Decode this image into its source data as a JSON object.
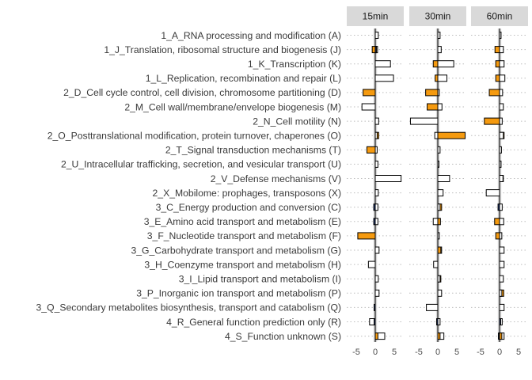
{
  "chart_data": {
    "type": "bar",
    "orientation": "horizontal",
    "facets": [
      "15min",
      "30min",
      "60min"
    ],
    "categories": [
      "1_A_RNA processing and modification (A)",
      "1_J_Translation, ribosomal structure and biogenesis (J)",
      "1_K_Transcription (K)",
      "1_L_Replication, recombination and repair (L)",
      "2_D_Cell cycle control, cell division, chromosome partitioning (D)",
      "2_M_Cell wall/membrane/envelope biogenesis (M)",
      "2_N_Cell motility (N)",
      "2_O_Posttranslational modification, protein turnover, chaperones (O)",
      "2_T_Signal transduction mechanisms (T)",
      "2_U_Intracellular trafficking, secretion, and vesicular transport (U)",
      "2_V_Defense mechanisms (V)",
      "2_X_Mobilome: prophages, transposons (X)",
      "3_C_Energy production and conversion (C)",
      "3_E_Amino acid transport and metabolism (E)",
      "3_F_Nucleotide transport and metabolism (F)",
      "3_G_Carbohydrate transport and metabolism (G)",
      "3_H_Coenzyme transport and metabolism (H)",
      "3_I_Lipid transport and metabolism (I)",
      "3_P_Inorganic ion transport and metabolism (P)",
      "3_Q_Secondary metabolites biosynthesis, transport and catabolism (Q)",
      "4_R_General function prediction only (R)",
      "4_S_Function unknown (S)"
    ],
    "xlim": [
      -7.5,
      7.5
    ],
    "xticks": [
      -5,
      0,
      5
    ],
    "series": [
      {
        "fill": "#ffffff",
        "values": {
          "15min": [
            0.8,
            0.6,
            4.0,
            4.8,
            0,
            -3.5,
            0.9,
            0.5,
            0.5,
            0.7,
            6.8,
            0.8,
            0.7,
            0.7,
            0,
            1.0,
            -1.8,
            0.8,
            1.0,
            0,
            -1.5,
            2.5
          ],
          "30min": [
            0.6,
            0.9,
            4.2,
            2.4,
            0.4,
            1.1,
            -7.2,
            -0.8,
            0.6,
            0.3,
            3.1,
            1.4,
            0.6,
            -1.2,
            0.4,
            1.0,
            -1.1,
            0.6,
            1.0,
            -3.0,
            0.6,
            1.6
          ],
          "60min": [
            0.4,
            1.0,
            1.2,
            1.4,
            0.8,
            1.0,
            0.7,
            1.0,
            0.5,
            0.4,
            0.9,
            -3.5,
            0.7,
            1.1,
            0.6,
            1.2,
            1.2,
            1.0,
            0.6,
            1.2,
            0.7,
            1.2
          ]
        }
      },
      {
        "fill": "#f59a0f",
        "values": {
          "15min": [
            0,
            -0.8,
            0,
            0,
            -3.2,
            0,
            0,
            0.9,
            -2.2,
            0,
            0,
            0,
            0,
            0,
            -4.6,
            0,
            0,
            0,
            0,
            0,
            0,
            0.7
          ],
          "30min": [
            0,
            0,
            -1.2,
            -0.7,
            -3.2,
            -2.8,
            0,
            7.2,
            0,
            0,
            0,
            0,
            1.0,
            0.7,
            0,
            0.8,
            0,
            0.8,
            0,
            0,
            0,
            0.6
          ],
          "60min": [
            0,
            -1.2,
            -1.0,
            -1.0,
            -2.7,
            0,
            -4.0,
            1.2,
            0,
            0,
            1.0,
            0,
            0,
            -1.3,
            -1.0,
            0,
            0,
            0,
            1.1,
            0,
            0,
            0.6
          ]
        }
      },
      {
        "fill": "#1f3a7a",
        "values": {
          "15min": [
            0,
            0.3,
            0,
            0,
            0,
            0,
            0,
            0,
            0,
            0,
            0,
            0,
            -0.4,
            -0.4,
            0,
            0,
            0,
            0,
            0,
            -0.3,
            -0.3,
            0
          ],
          "30min": [
            0,
            0,
            0,
            0,
            0,
            0,
            0,
            0,
            0,
            0,
            0,
            0,
            0,
            0,
            0,
            0,
            0,
            0,
            0,
            0,
            -0.3,
            0
          ],
          "60min": [
            0,
            0,
            0,
            0,
            0,
            0,
            0,
            0,
            0,
            0,
            0,
            0,
            -0.4,
            0,
            0,
            0,
            0,
            0,
            0,
            0,
            0.3,
            -0.3
          ]
        }
      }
    ],
    "grid": true,
    "legend": "none",
    "title": "",
    "xlabel": "",
    "ylabel": ""
  }
}
